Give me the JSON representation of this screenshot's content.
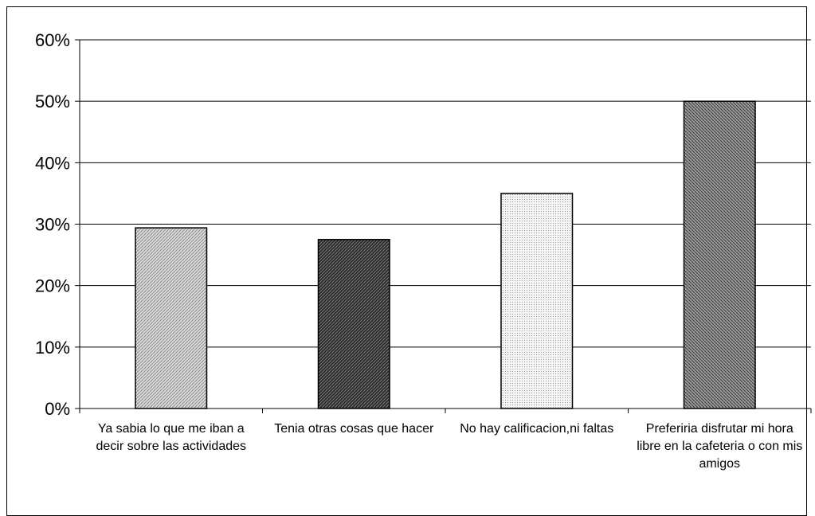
{
  "chart_data": {
    "type": "bar",
    "categories": [
      "Ya sabia lo que me iban a decir sobre las actividades",
      "Tenia otras cosas que hacer",
      "No hay calificacion,ni faltas",
      "Preferiria disfrutar mi hora libre en la cafeteria o con mis amigos"
    ],
    "values": [
      0.294,
      0.275,
      0.35,
      0.5
    ],
    "ylim": [
      0,
      0.6
    ],
    "yticks": [
      "0%",
      "10%",
      "20%",
      "30%",
      "40%",
      "50%",
      "60%"
    ],
    "grid": true,
    "legend": "none",
    "bar_patterns": [
      "light-diagonal",
      "dark-diagonal",
      "light-dotted",
      "medium-diagonal"
    ]
  },
  "colors": {
    "bar_light": "#bdbdbd",
    "bar_dark": "#3a3a3a",
    "bar_dotted": "#e6e6e6",
    "bar_medium": "#7a7a7a"
  }
}
